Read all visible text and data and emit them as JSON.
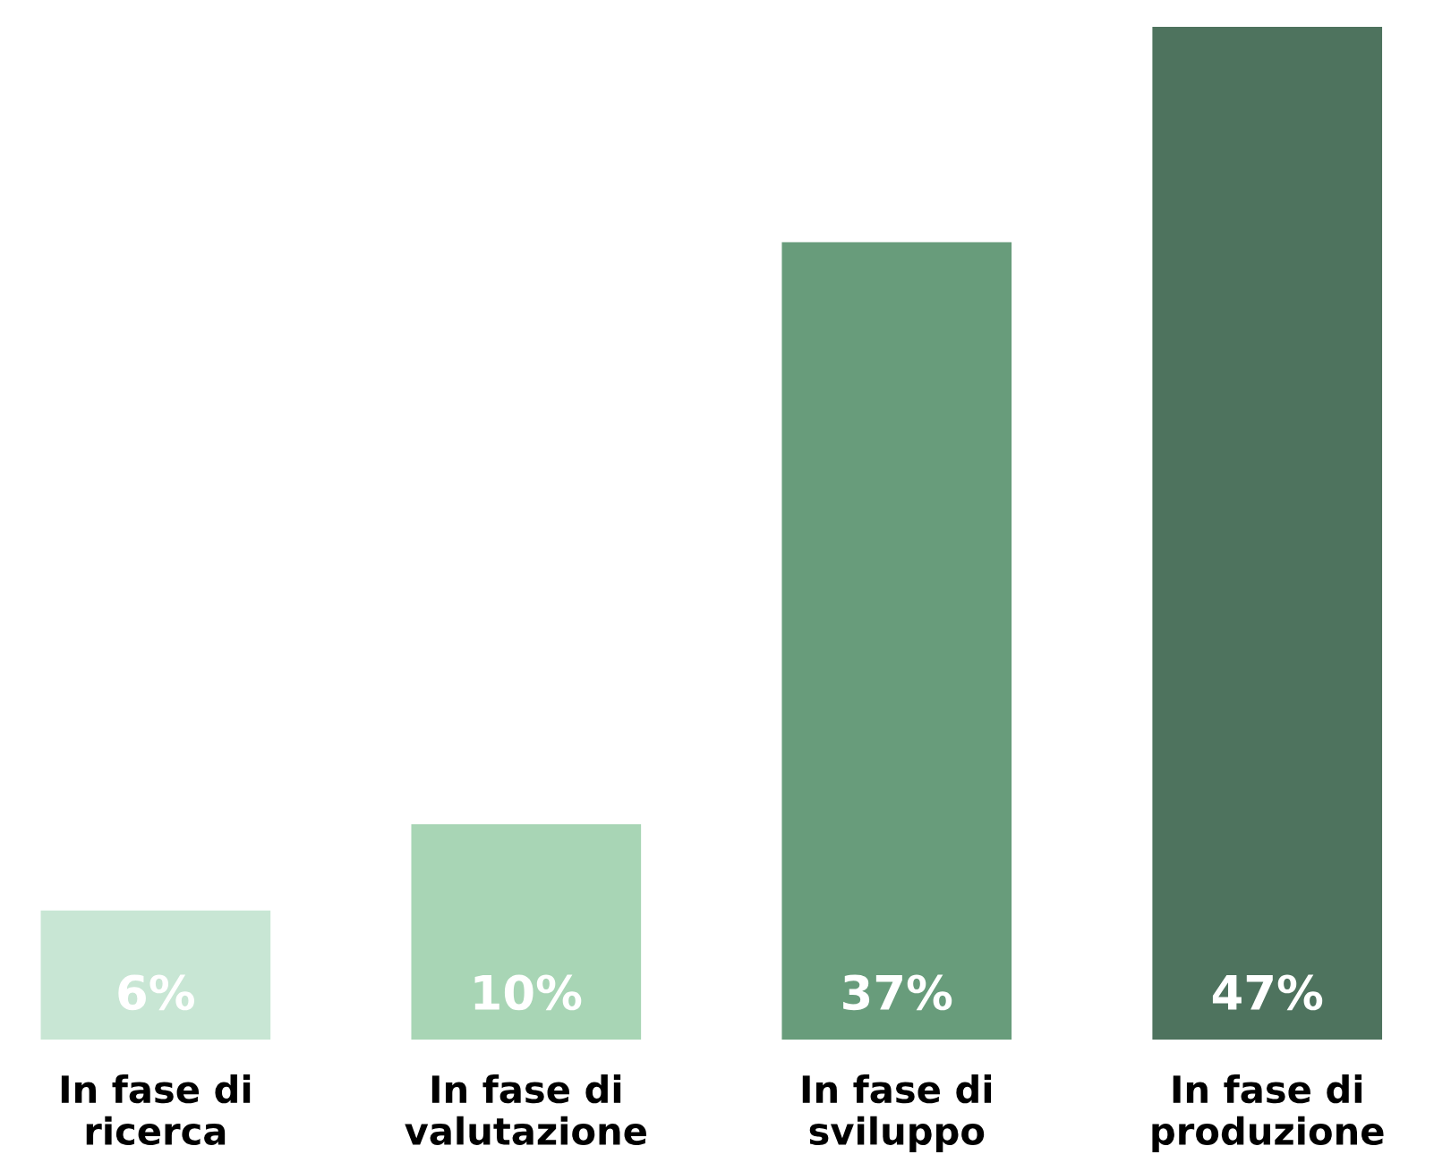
{
  "chart_data": {
    "type": "bar",
    "categories": [
      "In fase di ricerca",
      "In fase di valutazione",
      "In fase di sviluppo",
      "In fase di produzione"
    ],
    "values": [
      6,
      10,
      37,
      47
    ],
    "value_labels": [
      "6%",
      "10%",
      "37%",
      "47%"
    ],
    "colors": [
      "#c8e6d4",
      "#a8d5b5",
      "#689c7b",
      "#4e735e"
    ],
    "grid": false,
    "legend": false
  }
}
